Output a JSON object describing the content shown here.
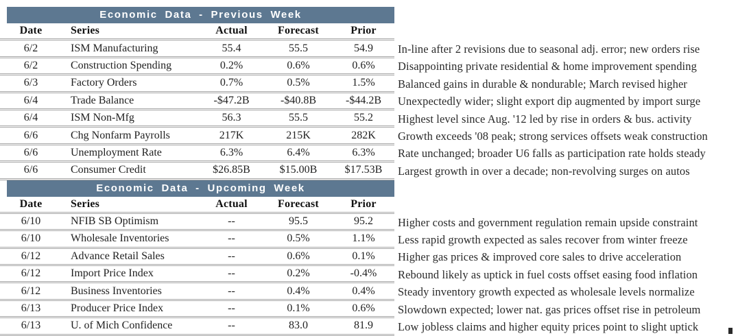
{
  "accent_color": "#5d7891",
  "divider_color": "#a6a6a6",
  "tables": [
    {
      "title": "Economic Data - Previous Week",
      "columns": [
        "Date",
        "Series",
        "Actual",
        "Forecast",
        "Prior"
      ],
      "rows": [
        {
          "date": "6/2",
          "series": "ISM Manufacturing",
          "actual": "55.4",
          "forecast": "55.5",
          "prior": "54.9",
          "note": "In-line after 2 revisions due to seasonal adj. error; new orders rise"
        },
        {
          "date": "6/2",
          "series": "Construction Spending",
          "actual": "0.2%",
          "forecast": "0.6%",
          "prior": "0.6%",
          "note": "Disappointing private residential & home improvement spending"
        },
        {
          "date": "6/3",
          "series": "Factory Orders",
          "actual": "0.7%",
          "forecast": "0.5%",
          "prior": "1.5%",
          "note": "Balanced gains in durable & nondurable; March revised higher"
        },
        {
          "date": "6/4",
          "series": "Trade Balance",
          "actual": "-$47.2B",
          "forecast": "-$40.8B",
          "prior": "-$44.2B",
          "note": "Unexpectedly wider; slight export dip augmented by import surge"
        },
        {
          "date": "6/4",
          "series": "ISM Non-Mfg",
          "actual": "56.3",
          "forecast": "55.5",
          "prior": "55.2",
          "note": "Highest level since Aug. '12 led by rise in orders & bus. activity"
        },
        {
          "date": "6/6",
          "series": "Chg Nonfarm Payrolls",
          "actual": "217K",
          "forecast": "215K",
          "prior": "282K",
          "note": "Growth exceeds '08 peak; strong services offsets weak construction"
        },
        {
          "date": "6/6",
          "series": "Unemployment Rate",
          "actual": "6.3%",
          "forecast": "6.4%",
          "prior": "6.3%",
          "note": "Rate unchanged; broader U6 falls as participation rate holds steady"
        },
        {
          "date": "6/6",
          "series": "Consumer Credit",
          "actual": "$26.85B",
          "forecast": "$15.00B",
          "prior": "$17.53B",
          "note": "Largest growth in over a decade; non-revolving surges on autos"
        }
      ]
    },
    {
      "title": "Economic Data - Upcoming Week",
      "columns": [
        "Date",
        "Series",
        "Actual",
        "Forecast",
        "Prior"
      ],
      "rows": [
        {
          "date": "6/10",
          "series": "NFIB SB Optimism",
          "actual": "--",
          "forecast": "95.5",
          "prior": "95.2",
          "note": "Higher costs and government regulation remain upside constraint"
        },
        {
          "date": "6/10",
          "series": "Wholesale Inventories",
          "actual": "--",
          "forecast": "0.5%",
          "prior": "1.1%",
          "note": "Less rapid growth expected as sales recover from winter freeze"
        },
        {
          "date": "6/12",
          "series": "Advance Retail Sales",
          "actual": "--",
          "forecast": "0.6%",
          "prior": "0.1%",
          "note": "Higher gas prices & improved core sales to drive acceleration"
        },
        {
          "date": "6/12",
          "series": "Import Price Index",
          "actual": "--",
          "forecast": "0.2%",
          "prior": "-0.4%",
          "note": "Rebound likely as uptick in fuel costs offset easing food inflation"
        },
        {
          "date": "6/12",
          "series": "Business Inventories",
          "actual": "--",
          "forecast": "0.4%",
          "prior": "0.4%",
          "note": "Steady inventory growth expected as wholesale levels normalize"
        },
        {
          "date": "6/13",
          "series": "Producer Price Index",
          "actual": "--",
          "forecast": "0.1%",
          "prior": "0.6%",
          "note": "Slowdown expected; lower nat. gas prices offset rise in petroleum"
        },
        {
          "date": "6/13",
          "series": "U. of Mich Confidence",
          "actual": "--",
          "forecast": "83.0",
          "prior": "81.9",
          "note": "Low jobless claims and higher equity prices point to slight uptick"
        }
      ]
    }
  ]
}
